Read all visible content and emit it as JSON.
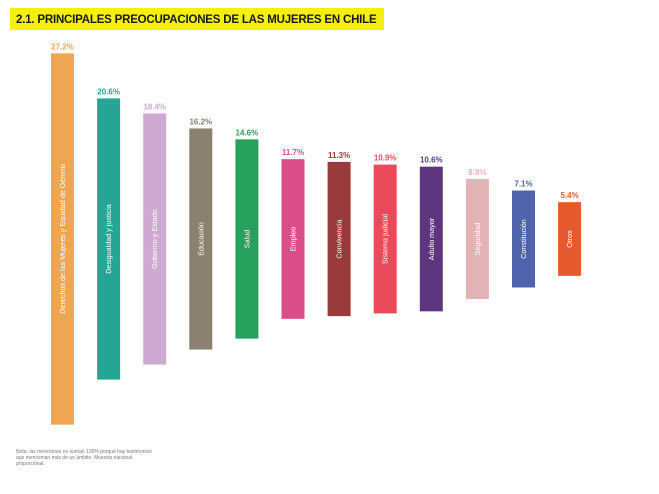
{
  "title": "2.1. PRINCIPALES PREOCUPACIONES DE LAS MUJERES EN CHILE",
  "note": "Nota: las menciones no suman 100% porque hay testimonios que mencionan más de un ámbito. Muestra nacional proporcional.",
  "chart_data": {
    "type": "bar",
    "title": "2.1. PRINCIPALES PREOCUPACIONES DE LAS MUJERES EN CHILE",
    "categories": [
      "Derechos de las Mujeres y Equidad de Género",
      "Desigualdad y justicia",
      "Gobierno y Estado",
      "Educación",
      "Salud",
      "Empleo",
      "Convivencia",
      "Sistema judicial",
      "Adulto mayor",
      "Seguridad",
      "Constitución",
      "Otros"
    ],
    "values": [
      27.2,
      20.6,
      18.4,
      16.2,
      14.6,
      11.7,
      11.3,
      10.9,
      10.6,
      8.8,
      7.1,
      5.4
    ],
    "value_labels": [
      "27.2%",
      "20.6%",
      "18.4%",
      "16.2%",
      "14.6%",
      "11.7%",
      "11.3%",
      "10.9%",
      "10.6%",
      "8.8%",
      "7.1%",
      "5.4%"
    ],
    "colors": [
      "#f0a552",
      "#25a593",
      "#d0a9d2",
      "#8a8170",
      "#27a05d",
      "#da4f8a",
      "#9a3a3a",
      "#ea4a5a",
      "#5e3680",
      "#e3b2b5",
      "#4f63ad",
      "#e55a2e"
    ],
    "label_colors": [
      "#f0a552",
      "#25a593",
      "#d0a9d2",
      "#8a8170",
      "#27a05d",
      "#da4f8a",
      "#9a3a3a",
      "#ea4a5a",
      "#5e3680",
      "#e3b2b5",
      "#4f63ad",
      "#e55a2e"
    ],
    "xlabel": "",
    "ylabel": "",
    "grid": false,
    "legend": "none",
    "orientation": "vertical-centered"
  }
}
